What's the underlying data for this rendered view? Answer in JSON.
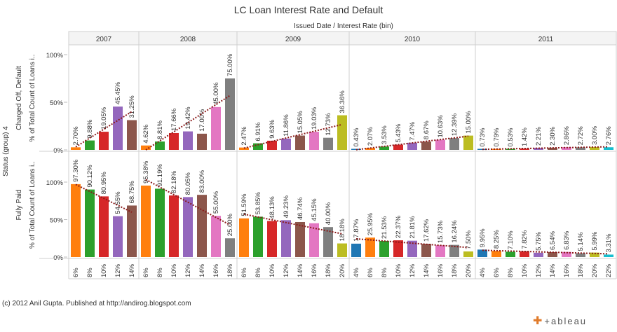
{
  "title": "LC Loan Interest Rate and Default",
  "footer": "(c) 2012 Anil Gupta. Published at http://andirog.blogspot.com",
  "logo": {
    "brand": "+ableau",
    "icon": "tableau-plus-icon"
  },
  "chart_data": {
    "type": "bar",
    "column_header": "Issued Date  /  Interest Rate (bin)",
    "row_header": "Status (group) 4",
    "years": [
      "2007",
      "2008",
      "2009",
      "2010",
      "2011"
    ],
    "rows": [
      {
        "name": "Charged Off, Default",
        "axis_label": "% of Total Count of Loans i..",
        "ticks": [
          "100%",
          "50%",
          "0%"
        ]
      },
      {
        "name": "Fully Paid",
        "axis_label": "% of Total Count of Loans i..",
        "ticks": [
          "100%",
          "50%",
          "0%"
        ]
      }
    ],
    "ylim": [
      0,
      100
    ],
    "trend_line": true,
    "rate_colors": {
      "4%": "#1f77b4",
      "6%": "#ff7f0e",
      "8%": "#2ca02c",
      "10%": "#d62728",
      "12%": "#9467bd",
      "14%": "#8c564b",
      "16%": "#e377c2",
      "18%": "#7f7f7f",
      "20%": "#bcbd22",
      "22%": "#17becf"
    },
    "panels": [
      {
        "year": "2007",
        "bins": [
          "6%",
          "8%",
          "10%",
          "12%",
          "14%"
        ],
        "charged_off": [
          2.7,
          9.88,
          19.05,
          45.45,
          31.25
        ],
        "fully_paid": [
          97.3,
          90.12,
          80.95,
          54.55,
          68.75
        ]
      },
      {
        "year": "2008",
        "bins": [
          "6%",
          "8%",
          "10%",
          "12%",
          "14%",
          "16%",
          "18%"
        ],
        "charged_off": [
          4.62,
          8.81,
          17.66,
          19.42,
          17.0,
          45.0,
          75.0
        ],
        "fully_paid": [
          95.38,
          91.19,
          82.18,
          80.05,
          83.0,
          55.0,
          25.0
        ]
      },
      {
        "year": "2009",
        "bins": [
          "6%",
          "8%",
          "10%",
          "12%",
          "14%",
          "16%",
          "18%",
          "20%"
        ],
        "charged_off": [
          2.47,
          6.91,
          9.63,
          11.86,
          15.05,
          19.03,
          12.73,
          36.36
        ],
        "fully_paid": [
          51.59,
          53.85,
          48.13,
          49.23,
          46.74,
          45.15,
          40.0,
          18.18
        ]
      },
      {
        "year": "2010",
        "bins": [
          "4%",
          "6%",
          "8%",
          "10%",
          "12%",
          "14%",
          "16%",
          "18%",
          "20%"
        ],
        "charged_off": [
          0.43,
          2.07,
          3.53,
          5.43,
          7.47,
          8.67,
          10.63,
          12.39,
          15.0
        ],
        "fully_paid": [
          17.87,
          25.95,
          21.53,
          22.37,
          21.81,
          17.62,
          15.73,
          16.24,
          7.5
        ]
      },
      {
        "year": "2011",
        "bins": [
          "4%",
          "6%",
          "8%",
          "10%",
          "12%",
          "14%",
          "16%",
          "18%",
          "20%",
          "22%"
        ],
        "charged_off": [
          0.73,
          0.79,
          0.53,
          1.42,
          2.21,
          2.3,
          2.86,
          2.72,
          3.0,
          2.76
        ],
        "fully_paid": [
          9.95,
          8.25,
          7.1,
          7.82,
          5.75,
          6.54,
          6.83,
          5.14,
          5.99,
          3.31
        ]
      }
    ]
  }
}
